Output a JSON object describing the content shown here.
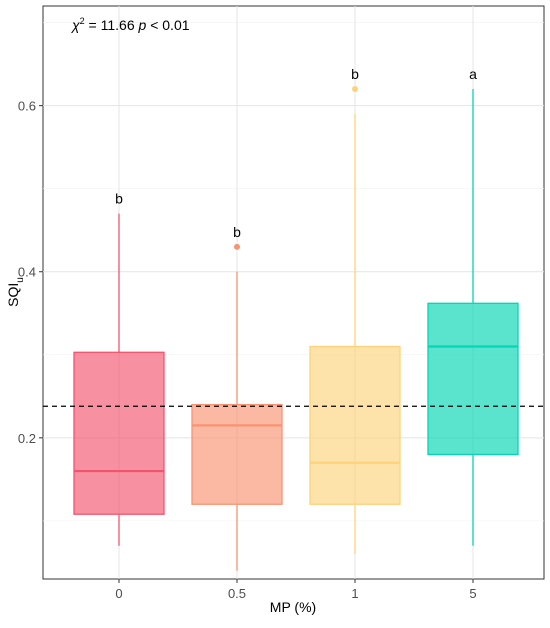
{
  "chart_data": {
    "type": "box",
    "title": "",
    "annotation": {
      "chi_symbol": "χ",
      "chi_sup": "2",
      "chi_value": " = 11.66 ",
      "p_symbol": "p",
      "p_value": " < 0.01"
    },
    "xlabel": "MP (%)",
    "ylabel_main": "SQI",
    "ylabel_sub": "u",
    "categories": [
      "0",
      "0.5",
      "1",
      "5"
    ],
    "ylim": [
      0.03,
      0.72
    ],
    "yticks": [
      0.2,
      0.4,
      0.6
    ],
    "ytick_labels": [
      "0.2",
      "0.4",
      "0.6"
    ],
    "reference_line": 0.238,
    "grid": true,
    "boxes": [
      {
        "category": "0",
        "whisker_low": 0.07,
        "q1": 0.108,
        "median": 0.16,
        "q3": 0.303,
        "whisker_high": 0.47,
        "outliers": [],
        "letter": "b",
        "color": "#F2546F"
      },
      {
        "category": "0.5",
        "whisker_low": 0.04,
        "q1": 0.12,
        "median": 0.215,
        "q3": 0.24,
        "whisker_high": 0.4,
        "outliers": [
          0.43
        ],
        "letter": "b",
        "color": "#F99372"
      },
      {
        "category": "1",
        "whisker_low": 0.06,
        "q1": 0.12,
        "median": 0.17,
        "q3": 0.31,
        "whisker_high": 0.59,
        "outliers": [
          0.62
        ],
        "letter": "b",
        "color": "#FCD37B"
      },
      {
        "category": "5",
        "whisker_low": 0.07,
        "q1": 0.18,
        "median": 0.31,
        "q3": 0.362,
        "whisker_high": 0.62,
        "outliers": [],
        "letter": "a",
        "color": "#02D6B4"
      }
    ]
  }
}
